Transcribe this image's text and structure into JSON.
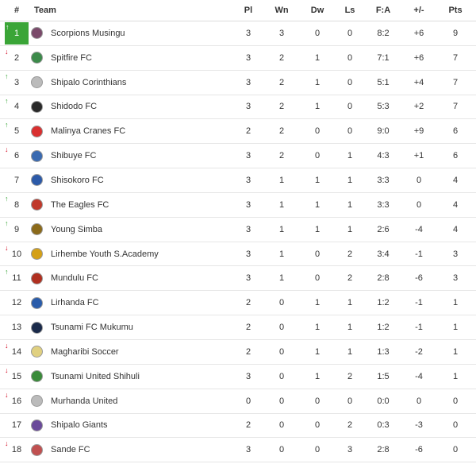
{
  "headers": {
    "rank": "#",
    "team": "Team",
    "pl": "Pl",
    "wn": "Wn",
    "dw": "Dw",
    "ls": "Ls",
    "fa": "F:A",
    "gd": "+/-",
    "pts": "Pts"
  },
  "rows": [
    {
      "rank": "1",
      "team": "Scorpions Musingu",
      "pl": "3",
      "wn": "3",
      "dw": "0",
      "ls": "0",
      "fa": "8:2",
      "gd": "+6",
      "pts": "9",
      "trend": "up",
      "logo_color": "#7a4a6a"
    },
    {
      "rank": "2",
      "team": "Spitfire FC",
      "pl": "3",
      "wn": "2",
      "dw": "1",
      "ls": "0",
      "fa": "7:1",
      "gd": "+6",
      "pts": "7",
      "trend": "down",
      "logo_color": "#3c8a4a"
    },
    {
      "rank": "3",
      "team": "Shipalo Corinthians",
      "pl": "3",
      "wn": "2",
      "dw": "1",
      "ls": "0",
      "fa": "5:1",
      "gd": "+4",
      "pts": "7",
      "trend": "up",
      "logo_color": "#bbbbbb"
    },
    {
      "rank": "4",
      "team": "Shidodo FC",
      "pl": "3",
      "wn": "2",
      "dw": "1",
      "ls": "0",
      "fa": "5:3",
      "gd": "+2",
      "pts": "7",
      "trend": "up",
      "logo_color": "#2a2a2a"
    },
    {
      "rank": "5",
      "team": "Malinya Cranes FC",
      "pl": "2",
      "wn": "2",
      "dw": "0",
      "ls": "0",
      "fa": "9:0",
      "gd": "+9",
      "pts": "6",
      "trend": "up",
      "logo_color": "#d93030"
    },
    {
      "rank": "6",
      "team": "Shibuye FC",
      "pl": "3",
      "wn": "2",
      "dw": "0",
      "ls": "1",
      "fa": "4:3",
      "gd": "+1",
      "pts": "6",
      "trend": "down",
      "logo_color": "#3a6ab0"
    },
    {
      "rank": "7",
      "team": "Shisokoro FC",
      "pl": "3",
      "wn": "1",
      "dw": "1",
      "ls": "1",
      "fa": "3:3",
      "gd": "0",
      "pts": "4",
      "trend": "none",
      "logo_color": "#2c5aa8"
    },
    {
      "rank": "8",
      "team": "The Eagles FC",
      "pl": "3",
      "wn": "1",
      "dw": "1",
      "ls": "1",
      "fa": "3:3",
      "gd": "0",
      "pts": "4",
      "trend": "up",
      "logo_color": "#c0392b"
    },
    {
      "rank": "9",
      "team": "Young Simba",
      "pl": "3",
      "wn": "1",
      "dw": "1",
      "ls": "1",
      "fa": "2:6",
      "gd": "-4",
      "pts": "4",
      "trend": "up",
      "logo_color": "#8b6a1a"
    },
    {
      "rank": "10",
      "team": "Lirhembe Youth S.Academy",
      "pl": "3",
      "wn": "1",
      "dw": "0",
      "ls": "2",
      "fa": "3:4",
      "gd": "-1",
      "pts": "3",
      "trend": "down",
      "logo_color": "#d4a017"
    },
    {
      "rank": "11",
      "team": "Mundulu FC",
      "pl": "3",
      "wn": "1",
      "dw": "0",
      "ls": "2",
      "fa": "2:8",
      "gd": "-6",
      "pts": "3",
      "trend": "up",
      "logo_color": "#b03020"
    },
    {
      "rank": "12",
      "team": "Lirhanda FC",
      "pl": "2",
      "wn": "0",
      "dw": "1",
      "ls": "1",
      "fa": "1:2",
      "gd": "-1",
      "pts": "1",
      "trend": "none",
      "logo_color": "#2a5caa"
    },
    {
      "rank": "13",
      "team": "Tsunami FC Mukumu",
      "pl": "2",
      "wn": "0",
      "dw": "1",
      "ls": "1",
      "fa": "1:2",
      "gd": "-1",
      "pts": "1",
      "trend": "none",
      "logo_color": "#1a2a4a"
    },
    {
      "rank": "14",
      "team": "Magharibi Soccer",
      "pl": "2",
      "wn": "0",
      "dw": "1",
      "ls": "1",
      "fa": "1:3",
      "gd": "-2",
      "pts": "1",
      "trend": "down",
      "logo_color": "#e0d080"
    },
    {
      "rank": "15",
      "team": "Tsunami United Shihuli",
      "pl": "3",
      "wn": "0",
      "dw": "1",
      "ls": "2",
      "fa": "1:5",
      "gd": "-4",
      "pts": "1",
      "trend": "down",
      "logo_color": "#3a8a3a"
    },
    {
      "rank": "16",
      "team": "Murhanda United",
      "pl": "0",
      "wn": "0",
      "dw": "0",
      "ls": "0",
      "fa": "0:0",
      "gd": "0",
      "pts": "0",
      "trend": "down",
      "logo_color": "#bbbbbb"
    },
    {
      "rank": "17",
      "team": "Shipalo Giants",
      "pl": "2",
      "wn": "0",
      "dw": "0",
      "ls": "2",
      "fa": "0:3",
      "gd": "-3",
      "pts": "0",
      "trend": "none",
      "logo_color": "#6a4a9a"
    },
    {
      "rank": "18",
      "team": "Sande FC",
      "pl": "3",
      "wn": "0",
      "dw": "0",
      "ls": "3",
      "fa": "2:8",
      "gd": "-6",
      "pts": "0",
      "trend": "down",
      "logo_color": "#c05050"
    }
  ]
}
